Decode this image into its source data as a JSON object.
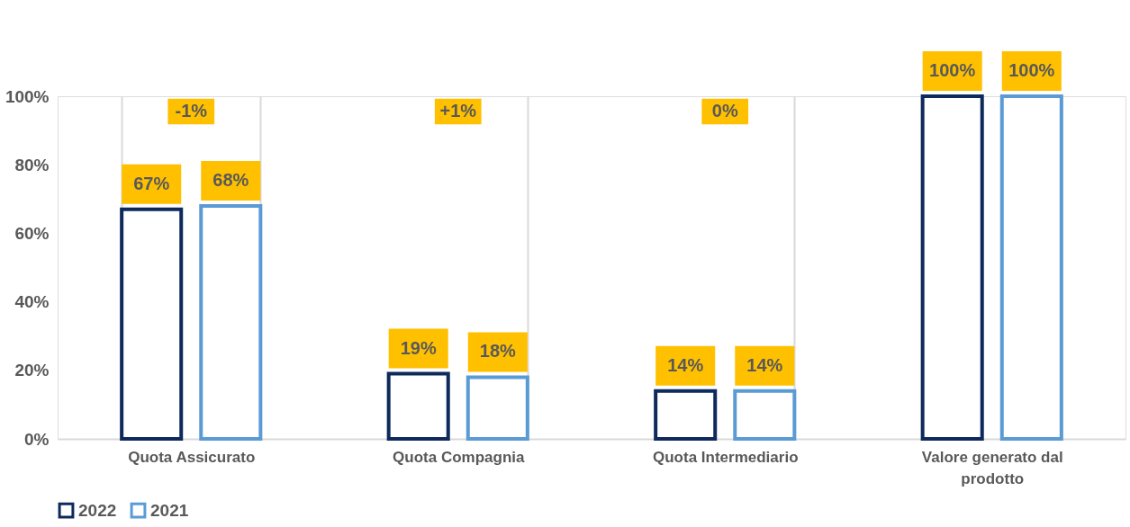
{
  "chart_data": {
    "type": "bar",
    "categories": [
      "Quota Assicurato",
      "Quota Compagnia",
      "Quota Intermediario",
      "Valore generato dal prodotto"
    ],
    "series": [
      {
        "name": "2022",
        "color": "#0e2a5c",
        "values": [
          67,
          19,
          14,
          100
        ],
        "value_labels": [
          "67%",
          "19%",
          "14%",
          "100%"
        ]
      },
      {
        "name": "2021",
        "color": "#5b9bd5",
        "values": [
          68,
          18,
          14,
          100
        ],
        "value_labels": [
          "68%",
          "18%",
          "14%",
          "100%"
        ]
      }
    ],
    "ylim": [
      0,
      100
    ],
    "yticks": [
      {
        "value": 0,
        "label": "0%"
      },
      {
        "value": 20,
        "label": "20%"
      },
      {
        "value": 40,
        "label": "40%"
      },
      {
        "value": 60,
        "label": "60%"
      },
      {
        "value": 80,
        "label": "80%"
      },
      {
        "value": 100,
        "label": "100%"
      }
    ],
    "annotations": [
      "-1%",
      "+1%",
      "0%"
    ],
    "grid": "x",
    "legend": "bottom"
  }
}
